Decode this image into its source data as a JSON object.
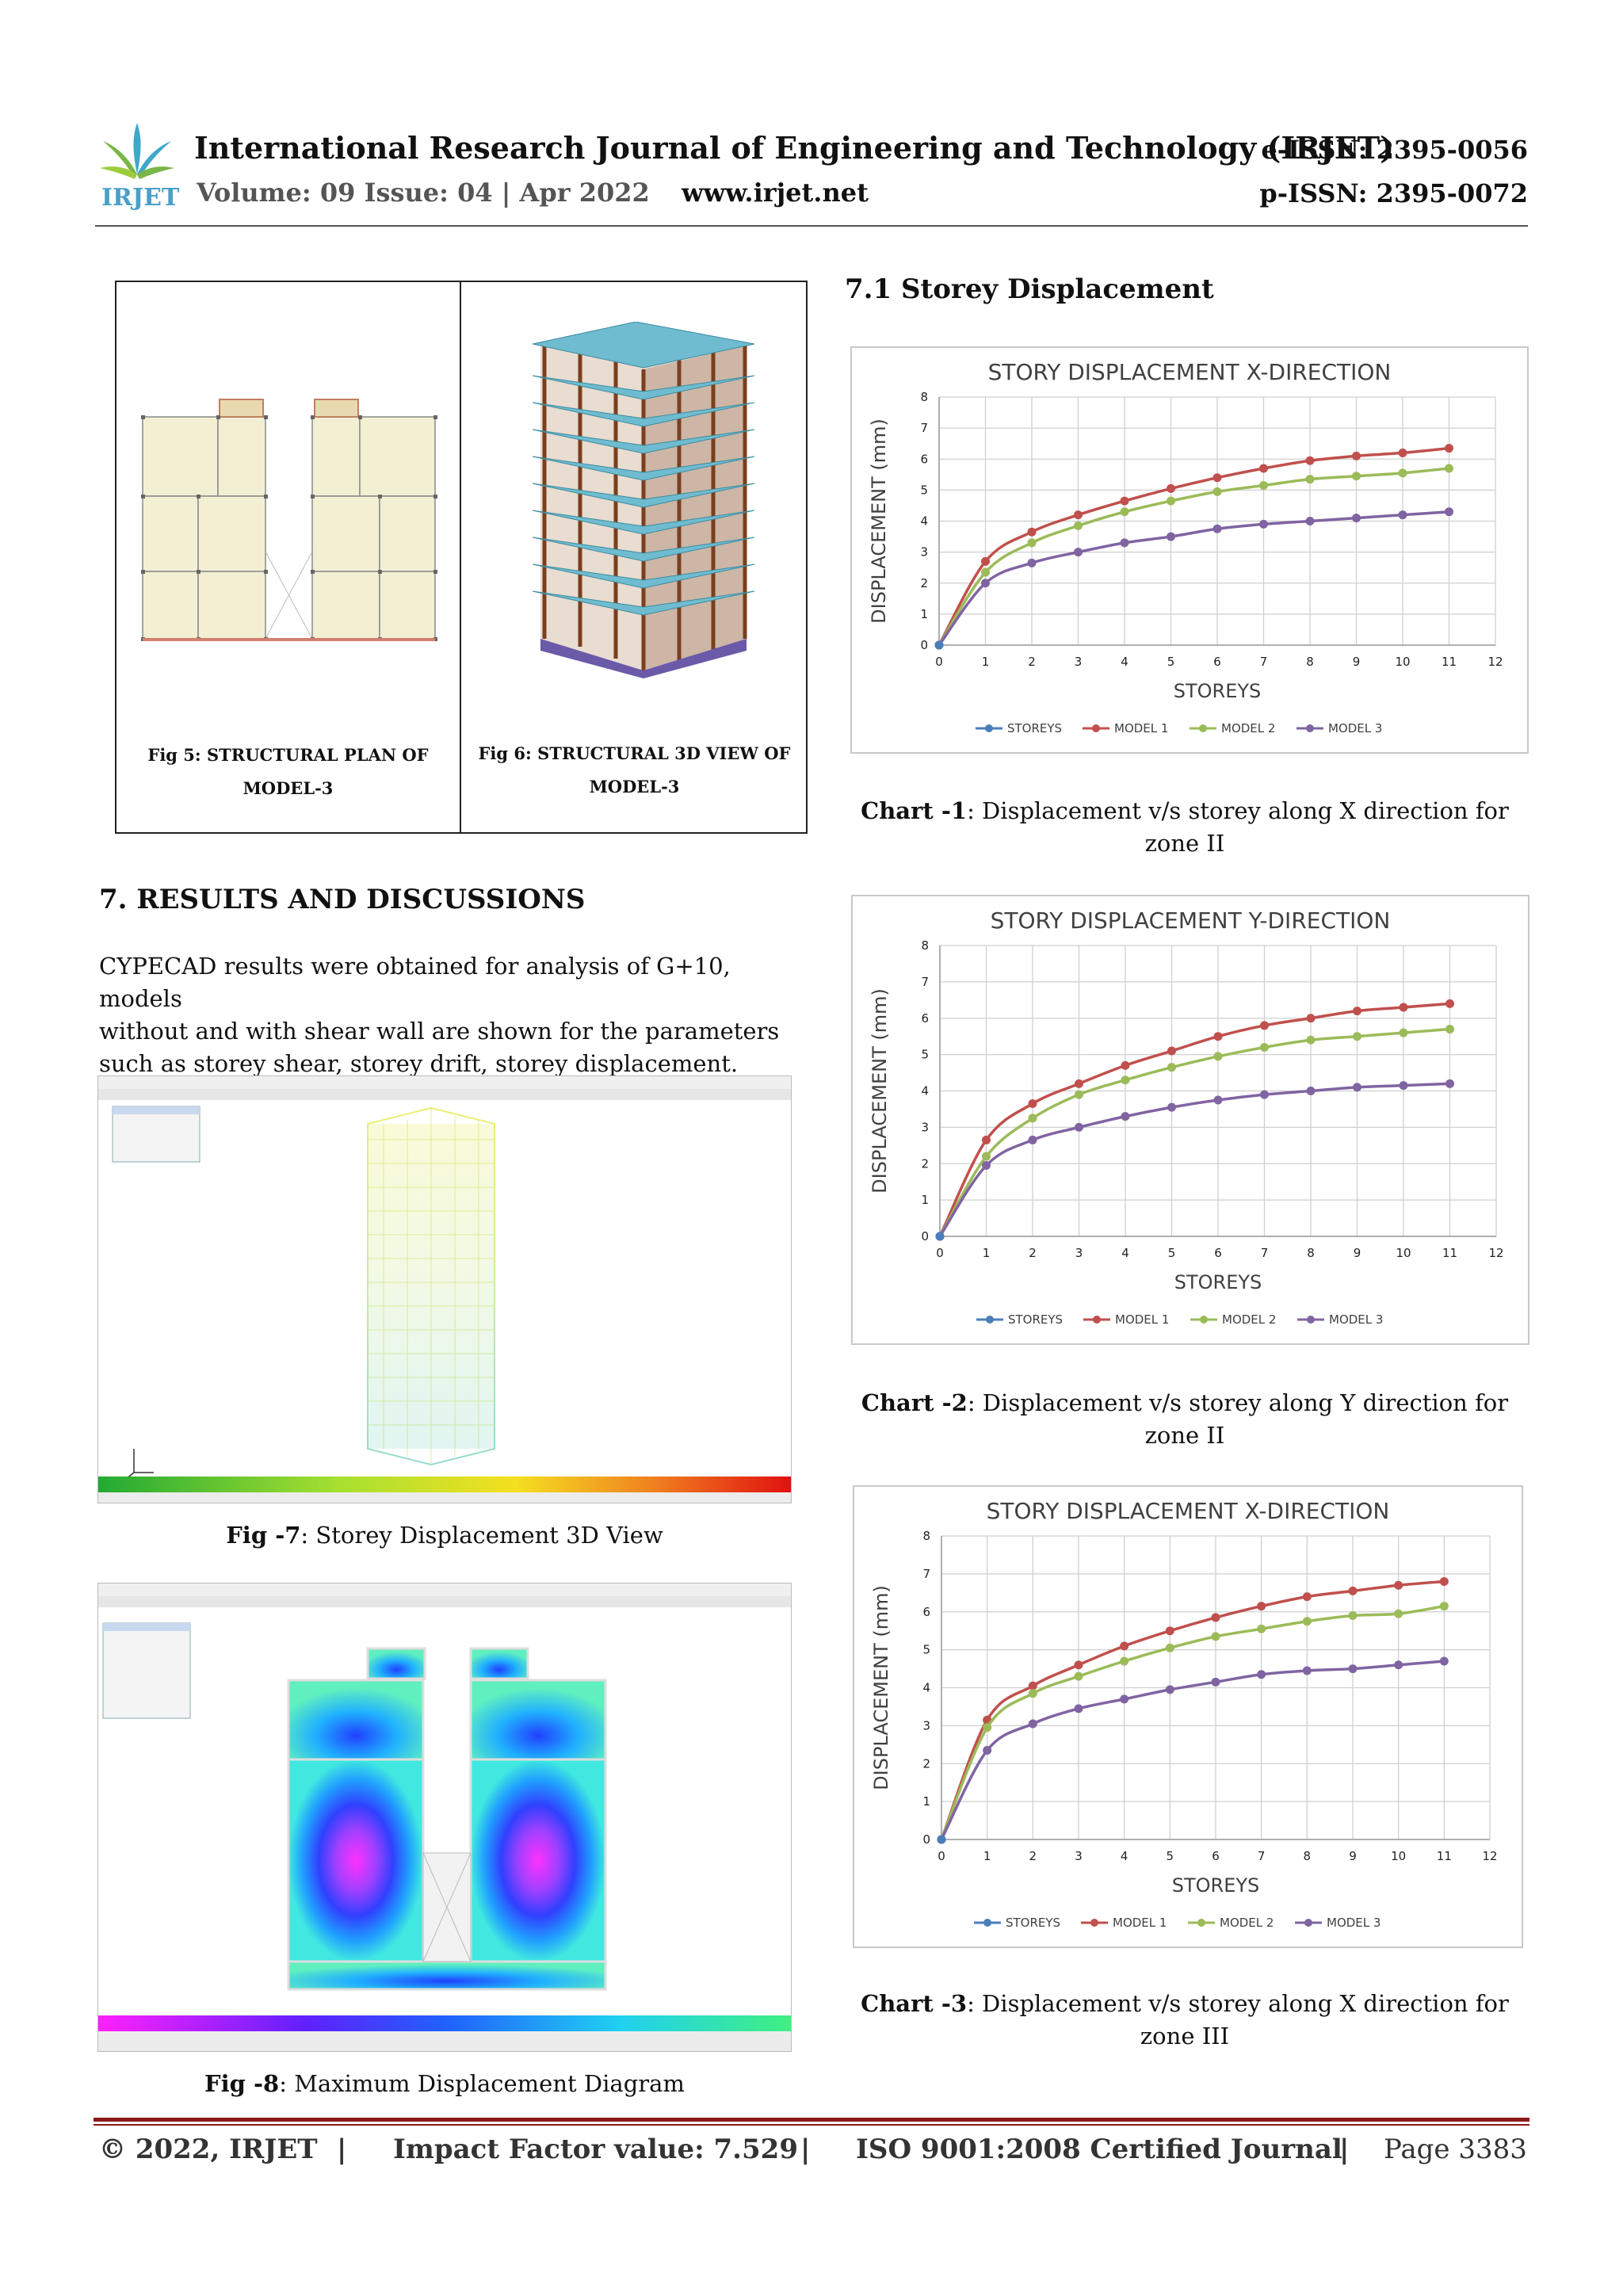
{
  "header": {
    "logo_text": "IRJET",
    "title": "International Research Journal of Engineering and Technology (IRJET)",
    "eissn": "e-ISSN: 2395-0056",
    "pissn": "p-ISSN: 2395-0072",
    "volume": "Volume: 09 Issue: 04 | Apr 2022",
    "website": "www.irjet.net"
  },
  "figures": {
    "fig5_caption": "Fig 5: STRUCTURAL PLAN OF MODEL-3",
    "fig5_line1": "Fig 5: STRUCTURAL PLAN OF",
    "fig5_line2": "MODEL-3",
    "fig6_line1": "Fig 6: STRUCTURAL 3D VIEW OF",
    "fig6_line2": "MODEL-3",
    "fig7_label": "Fig -7",
    "fig7_text": ": Storey Displacement 3D View",
    "fig8_label": "Fig -8",
    "fig8_text": ": Maximum Displacement Diagram"
  },
  "section7": {
    "heading": "7. RESULTS AND DISCUSSIONS",
    "paragraph_lines": [
      "CYPECAD results were obtained for analysis of G+10, models",
      "without and with shear wall are shown for the parameters",
      "such as storey shear, storey drift, storey displacement."
    ]
  },
  "section71": {
    "heading": "7.1 Storey Displacement"
  },
  "captions": [
    {
      "label": "Chart -1",
      "line1": ": Displacement v/s storey along X direction for",
      "line2": "zone II"
    },
    {
      "label": "Chart -2",
      "line1": ": Displacement v/s storey along Y direction for",
      "line2": "zone II"
    },
    {
      "label": "Chart -3",
      "line1": ": Displacement v/s storey along X direction for",
      "line2": "zone III"
    }
  ],
  "colors": {
    "storeys": "#4a7ebb",
    "model1": "#c0504d",
    "model2": "#9bbb59",
    "model3": "#8064a2",
    "footer_rule": "#8b1a1a"
  },
  "chart_data": [
    {
      "type": "line",
      "title": "STORY DISPLACEMENT X-DIRECTION",
      "xlabel": "STOREYS",
      "ylabel": "DISPLACEMENT (mm)",
      "xlim": [
        0,
        12
      ],
      "ylim": [
        0,
        8
      ],
      "grid": true,
      "legend": "bottom",
      "x": [
        0,
        1,
        2,
        3,
        4,
        5,
        6,
        7,
        8,
        9,
        10,
        11
      ],
      "series": [
        {
          "name": "STOREYS",
          "values": [
            0,
            null,
            null,
            null,
            null,
            null,
            null,
            null,
            null,
            null,
            null,
            null
          ]
        },
        {
          "name": "MODEL 1",
          "values": [
            0,
            2.7,
            3.65,
            4.2,
            4.65,
            5.05,
            5.4,
            5.7,
            5.95,
            6.1,
            6.2,
            6.35
          ]
        },
        {
          "name": "MODEL 2",
          "values": [
            0,
            2.35,
            3.3,
            3.85,
            4.3,
            4.65,
            4.95,
            5.15,
            5.35,
            5.45,
            5.55,
            5.7
          ]
        },
        {
          "name": "MODEL 3",
          "values": [
            0,
            2.0,
            2.65,
            3.0,
            3.3,
            3.5,
            3.75,
            3.9,
            4.0,
            4.1,
            4.2,
            4.3
          ]
        }
      ]
    },
    {
      "type": "line",
      "title": "STORY DISPLACEMENT Y-DIRECTION",
      "xlabel": "STOREYS",
      "ylabel": "DISPLACEMENT (mm)",
      "xlim": [
        0,
        12
      ],
      "ylim": [
        0,
        8
      ],
      "grid": true,
      "legend": "bottom",
      "x": [
        0,
        1,
        2,
        3,
        4,
        5,
        6,
        7,
        8,
        9,
        10,
        11
      ],
      "series": [
        {
          "name": "STOREYS",
          "values": [
            0,
            null,
            null,
            null,
            null,
            null,
            null,
            null,
            null,
            null,
            null,
            null
          ]
        },
        {
          "name": "MODEL 1",
          "values": [
            0,
            2.65,
            3.65,
            4.2,
            4.7,
            5.1,
            5.5,
            5.8,
            6.0,
            6.2,
            6.3,
            6.4
          ]
        },
        {
          "name": "MODEL 2",
          "values": [
            0,
            2.2,
            3.25,
            3.9,
            4.3,
            4.65,
            4.95,
            5.2,
            5.4,
            5.5,
            5.6,
            5.7
          ]
        },
        {
          "name": "MODEL 3",
          "values": [
            0,
            1.95,
            2.65,
            3.0,
            3.3,
            3.55,
            3.75,
            3.9,
            4.0,
            4.1,
            4.15,
            4.2
          ]
        }
      ]
    },
    {
      "type": "line",
      "title": "STORY DISPLACEMENT X-DIRECTION",
      "xlabel": "STOREYS",
      "ylabel": "DISPLACEMENT (mm)",
      "xlim": [
        0,
        12
      ],
      "ylim": [
        0,
        8
      ],
      "grid": true,
      "legend": "bottom",
      "x": [
        0,
        1,
        2,
        3,
        4,
        5,
        6,
        7,
        8,
        9,
        10,
        11
      ],
      "series": [
        {
          "name": "STOREYS",
          "values": [
            0,
            null,
            null,
            null,
            null,
            null,
            null,
            null,
            null,
            null,
            null,
            null
          ]
        },
        {
          "name": "MODEL 1",
          "values": [
            0,
            3.15,
            4.05,
            4.6,
            5.1,
            5.5,
            5.85,
            6.15,
            6.4,
            6.55,
            6.7,
            6.8
          ]
        },
        {
          "name": "MODEL 2",
          "values": [
            0,
            2.95,
            3.85,
            4.3,
            4.7,
            5.05,
            5.35,
            5.55,
            5.75,
            5.9,
            5.95,
            6.15
          ]
        },
        {
          "name": "MODEL 3",
          "values": [
            0,
            2.35,
            3.05,
            3.45,
            3.7,
            3.95,
            4.15,
            4.35,
            4.45,
            4.5,
            4.6,
            4.7
          ]
        }
      ]
    }
  ],
  "footer": {
    "copyright": "© 2022, IRJET",
    "sep": "|",
    "impact": "Impact Factor value: 7.529",
    "iso": "ISO 9001:2008 Certified Journal",
    "page": "Page 3383"
  }
}
